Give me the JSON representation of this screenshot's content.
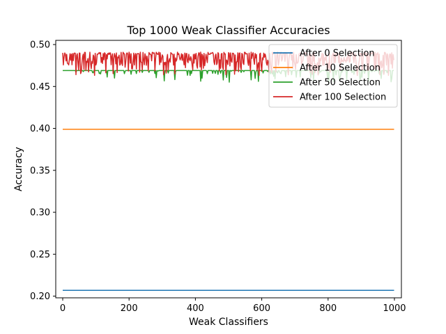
{
  "chart_data": {
    "type": "line",
    "title": "Top 1000 Weak Classifier Accuracies",
    "xlabel": "Weak Classifiers",
    "ylabel": "Accuracy",
    "xlim": [
      -21,
      1021
    ],
    "ylim": [
      0.198,
      0.505
    ],
    "xticks": [
      0,
      200,
      400,
      600,
      800,
      1000
    ],
    "yticks": [
      0.2,
      0.25,
      0.3,
      0.35,
      0.4,
      0.45,
      0.5
    ],
    "ytick_labels": [
      "0.20",
      "0.25",
      "0.30",
      "0.35",
      "0.40",
      "0.45",
      "0.50"
    ],
    "grid": false,
    "legend_position": "upper right",
    "x_range": [
      0,
      999
    ],
    "series": [
      {
        "name": "After 0 Selection",
        "color": "#1f77b4",
        "pattern": "constant",
        "value": 0.207
      },
      {
        "name": "After 10 Selection",
        "color": "#ff7f0e",
        "pattern": "constant",
        "value": 0.399
      },
      {
        "name": "After 50 Selection",
        "color": "#2ca02c",
        "pattern": "noisy",
        "base": 0.469,
        "low": 0.455,
        "high": 0.469
      },
      {
        "name": "After 100 Selection",
        "color": "#d62728",
        "pattern": "noisy",
        "base": 0.49,
        "low": 0.463,
        "high": 0.491
      }
    ]
  }
}
